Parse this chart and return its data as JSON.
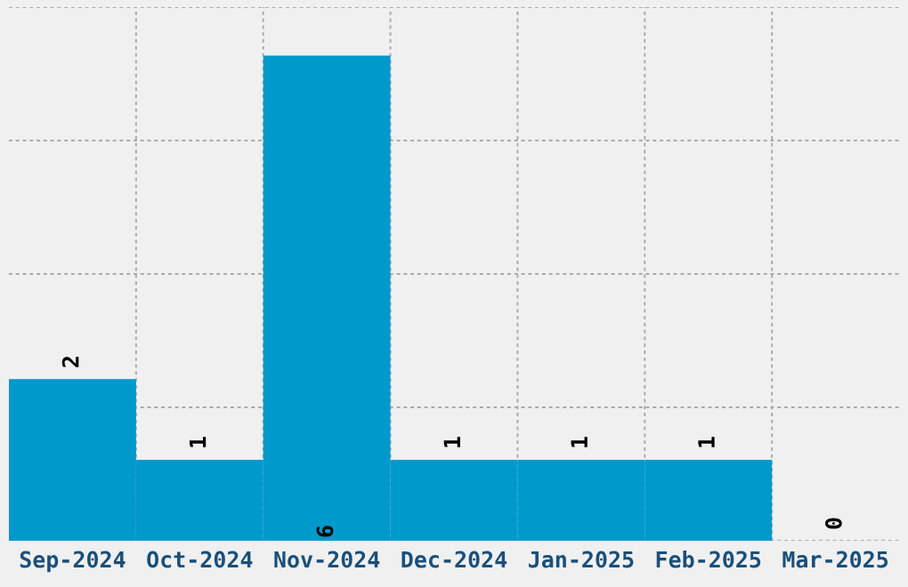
{
  "chart_data": {
    "type": "bar",
    "categories": [
      "Sep-2024",
      "Oct-2024",
      "Nov-2024",
      "Dec-2024",
      "Jan-2025",
      "Feb-2025",
      "Mar-2025"
    ],
    "values": [
      2,
      1,
      6,
      1,
      1,
      1,
      0
    ],
    "color": "#0099cc",
    "ylim": [
      0,
      6.6
    ],
    "yticks": [
      {
        "value": 0,
        "label": null
      },
      {
        "value": 1.65,
        "label": null
      },
      {
        "value": 3.3,
        "label": null
      },
      {
        "value": 4.95,
        "label": null
      },
      {
        "value": 6.6,
        "label": null
      }
    ],
    "tick_labels": "x",
    "grid": true,
    "data_labels": true
  }
}
